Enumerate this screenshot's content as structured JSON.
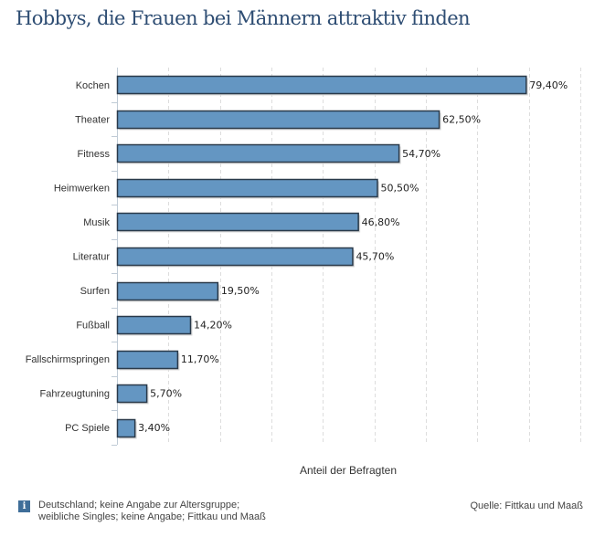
{
  "chart_data": {
    "type": "bar",
    "orientation": "horizontal",
    "title": "Hobbys, die Frauen bei Männern attraktiv finden",
    "xlabel": "Anteil der Befragten",
    "ylabel": "",
    "categories": [
      "Kochen",
      "Theater",
      "Fitness",
      "Heimwerken",
      "Musik",
      "Literatur",
      "Surfen",
      "Fußball",
      "Fallschirmspringen",
      "Fahrzeugtuning",
      "PC Spiele"
    ],
    "values": [
      79.4,
      62.5,
      54.7,
      50.5,
      46.8,
      45.7,
      19.5,
      14.2,
      11.7,
      5.7,
      3.4
    ],
    "value_labels": [
      "79,40%",
      "62,50%",
      "54,70%",
      "50,50%",
      "46,80%",
      "45,70%",
      "19,50%",
      "14,20%",
      "11,70%",
      "5,70%",
      "3,40%"
    ],
    "xlim": [
      0,
      90
    ],
    "grid": true,
    "bar_color": "#6496c2",
    "bar_border_color": "#2a3a4a"
  },
  "footer": {
    "info_icon": "info-icon",
    "info_glyph": "i",
    "note_line1": "Deutschland; keine Angabe zur Altersgruppe;",
    "note_line2": "weibliche Singles; keine Angabe; Fittkau und Maaß",
    "source": "Quelle: Fittkau und Maaß"
  }
}
